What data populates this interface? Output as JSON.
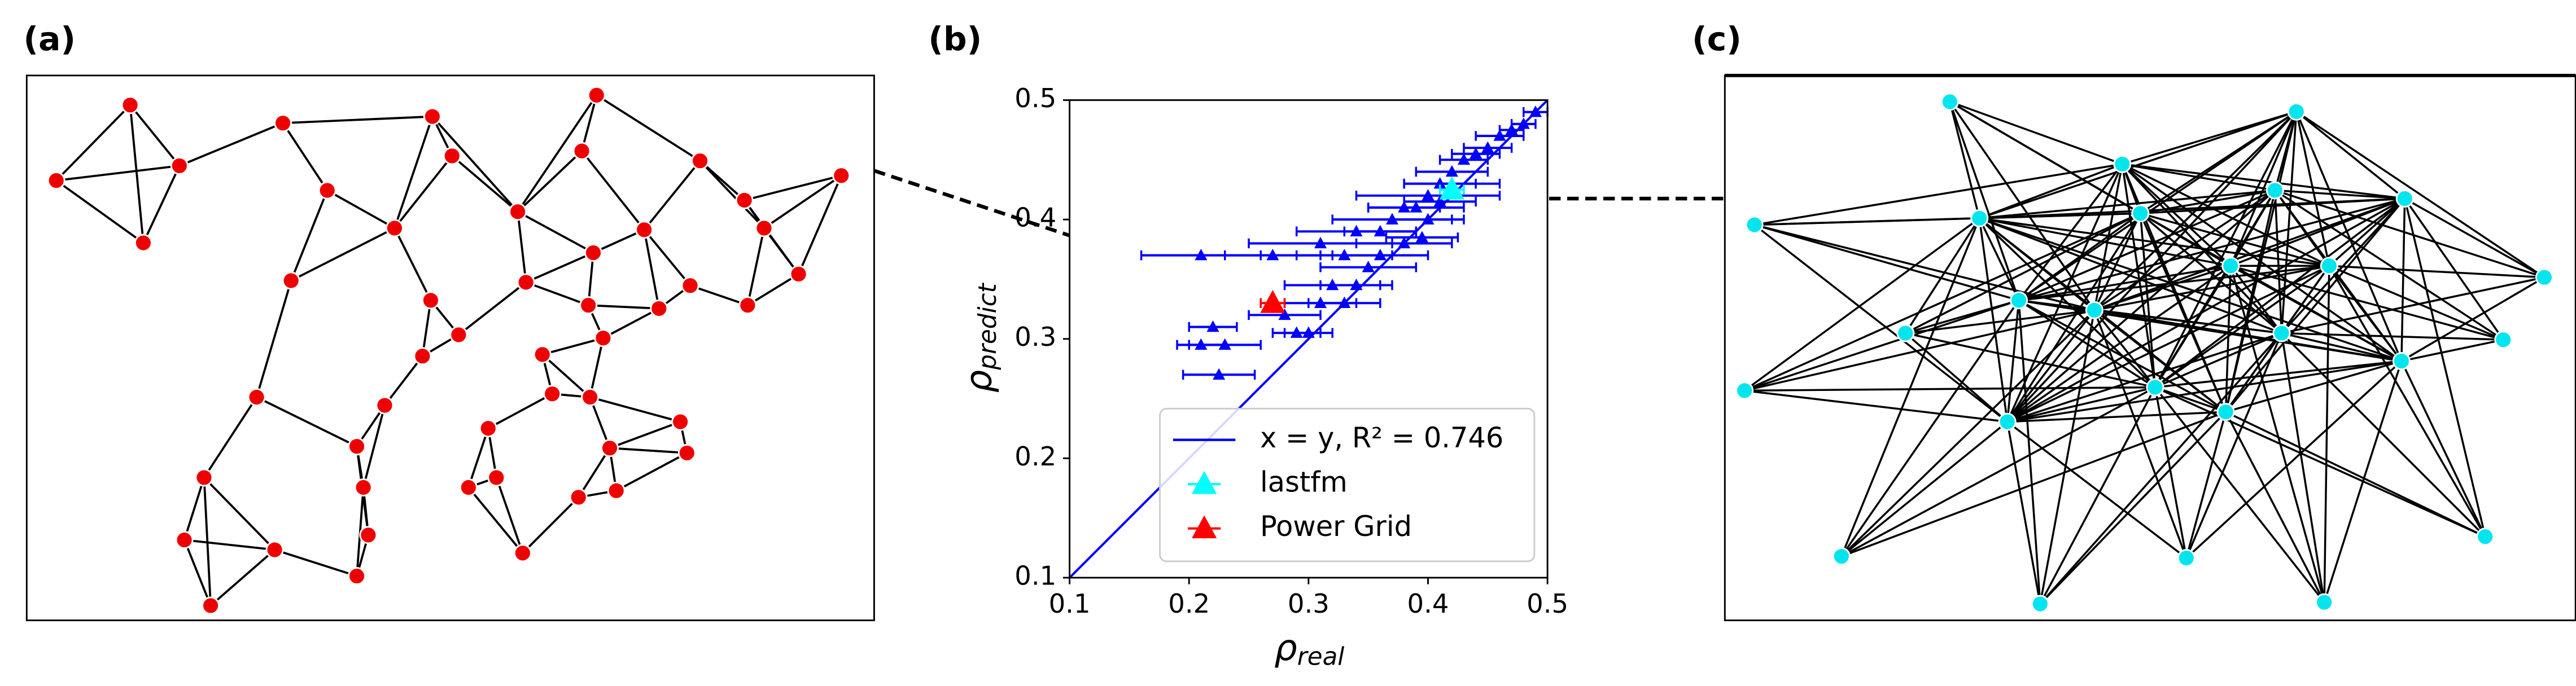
{
  "panel_labels": [
    "(a)",
    "(b)",
    "(c)"
  ],
  "chart_data": {
    "type": "scatter",
    "xlabel": [
      "ρ",
      "real"
    ],
    "ylabel": [
      "ρ",
      "predict"
    ],
    "xlim": [
      0.1,
      0.5
    ],
    "ylim": [
      0.1,
      0.5
    ],
    "xticks": [
      0.1,
      0.2,
      0.3,
      0.4,
      0.5
    ],
    "yticks": [
      0.1,
      0.2,
      0.3,
      0.4,
      0.5
    ],
    "legend": "lower right",
    "series": [
      {
        "name": "x = y, R² = 0.746",
        "type": "line",
        "color": "#0000ff",
        "x": [
          0.1,
          0.5
        ],
        "values": [
          0.1,
          0.5
        ]
      },
      {
        "type": "scatter",
        "color": "#0000ff",
        "x": [
          0.21,
          0.27,
          0.22,
          0.21,
          0.23,
          0.225,
          0.29,
          0.3,
          0.31,
          0.33,
          0.32,
          0.34,
          0.31,
          0.33,
          0.35,
          0.36,
          0.38,
          0.34,
          0.37,
          0.39,
          0.4,
          0.41,
          0.42,
          0.43,
          0.44,
          0.45,
          0.46,
          0.47,
          0.48,
          0.49,
          0.38,
          0.36,
          0.28,
          0.4,
          0.42,
          0.395,
          0.41
        ],
        "values": [
          0.37,
          0.37,
          0.31,
          0.295,
          0.295,
          0.27,
          0.305,
          0.305,
          0.33,
          0.33,
          0.345,
          0.345,
          0.38,
          0.37,
          0.36,
          0.37,
          0.38,
          0.39,
          0.4,
          0.41,
          0.42,
          0.43,
          0.44,
          0.45,
          0.455,
          0.46,
          0.47,
          0.475,
          0.48,
          0.49,
          0.41,
          0.39,
          0.32,
          0.4,
          0.43,
          0.385,
          0.415
        ],
        "xerr": [
          0.05,
          0.04,
          0.02,
          0.02,
          0.03,
          0.03,
          0.02,
          0.02,
          0.03,
          0.03,
          0.04,
          0.03,
          0.06,
          0.04,
          0.04,
          0.04,
          0.04,
          0.05,
          0.05,
          0.04,
          0.06,
          0.03,
          0.03,
          0.02,
          0.02,
          0.02,
          0.02,
          0.01,
          0.01,
          0.01,
          0.03,
          0.03,
          0.03,
          0.03,
          0.04,
          0.03,
          0.03
        ]
      },
      {
        "name": "lastfm",
        "type": "scatter",
        "color": "#00ffff",
        "x": [
          0.42
        ],
        "values": [
          0.425
        ],
        "xerr": [
          0.01
        ]
      },
      {
        "name": "Power Grid",
        "type": "scatter",
        "color": "#ff0000",
        "x": [
          0.27
        ],
        "values": [
          0.33
        ],
        "xerr": [
          0.01
        ]
      }
    ]
  }
}
